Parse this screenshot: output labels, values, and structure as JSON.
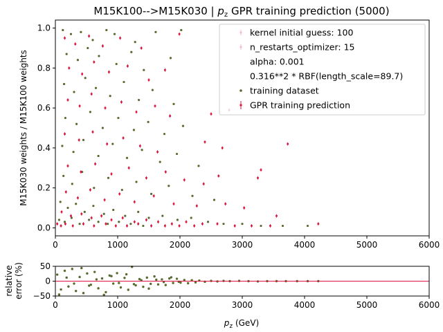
{
  "chart_data": [
    {
      "type": "scatter",
      "title": "M15K100-->M15K030 | p_z GPR training prediction (5000)",
      "title_parts": {
        "pre": "M15K100-->M15K030 | ",
        "sym": "p",
        "sub": "z",
        "post": " GPR training prediction (5000)"
      },
      "ylabel": "M15K030 weights / M15K100 weights",
      "xlim": [
        0,
        6000
      ],
      "ylim": [
        -0.04,
        1.04
      ],
      "xticks": [
        "0",
        "1000",
        "2000",
        "3000",
        "4000",
        "5000",
        "6000"
      ],
      "yticks": [
        "0.0",
        "0.2",
        "0.4",
        "0.6",
        "0.8",
        "1.0"
      ],
      "grid": false,
      "legend_position": "top-right",
      "legend": [
        {
          "label": "kernel initial guess: 100",
          "marker": "errorbar-pink"
        },
        {
          "label": "n_restarts_optimizer: 15",
          "marker": "errorbar-pink"
        },
        {
          "label": "alpha: 0.001",
          "marker": "none"
        },
        {
          "label": "0.316**2 * RBF(length_scale=89.7)",
          "marker": "none"
        },
        {
          "label": "training dataset",
          "marker": "dot-green"
        },
        {
          "label": "GPR training prediction",
          "marker": "errorbar-red"
        }
      ],
      "series": [
        {
          "name": "training dataset",
          "color": "#556b2f",
          "points": [
            [
              120,
              0.99
            ],
            [
              250,
              0.97
            ],
            [
              410,
              0.98
            ],
            [
              600,
              0.94
            ],
            [
              820,
              0.99
            ],
            [
              950,
              0.97
            ],
            [
              1280,
              0.93
            ],
            [
              1610,
              0.98
            ],
            [
              2020,
              0.99
            ],
            [
              180,
              0.87
            ],
            [
              360,
              0.84
            ],
            [
              520,
              0.9
            ],
            [
              700,
              0.86
            ],
            [
              980,
              0.82
            ],
            [
              1220,
              0.88
            ],
            [
              1420,
              0.79
            ],
            [
              1850,
              0.85
            ],
            [
              140,
              0.72
            ],
            [
              300,
              0.68
            ],
            [
              480,
              0.75
            ],
            [
              650,
              0.7
            ],
            [
              880,
              0.66
            ],
            [
              1100,
              0.73
            ],
            [
              1340,
              0.64
            ],
            [
              1560,
              0.69
            ],
            [
              1900,
              0.62
            ],
            [
              160,
              0.55
            ],
            [
              340,
              0.52
            ],
            [
              560,
              0.58
            ],
            [
              760,
              0.5
            ],
            [
              1010,
              0.55
            ],
            [
              1260,
              0.49
            ],
            [
              1490,
              0.53
            ],
            [
              1750,
              0.47
            ],
            [
              2050,
              0.51
            ],
            [
              110,
              0.41
            ],
            [
              290,
              0.38
            ],
            [
              450,
              0.44
            ],
            [
              690,
              0.36
            ],
            [
              920,
              0.42
            ],
            [
              1150,
              0.35
            ],
            [
              1390,
              0.39
            ],
            [
              1680,
              0.33
            ],
            [
              1950,
              0.37
            ],
            [
              2300,
              0.31
            ],
            [
              130,
              0.26
            ],
            [
              270,
              0.22
            ],
            [
              430,
              0.28
            ],
            [
              620,
              0.2
            ],
            [
              850,
              0.25
            ],
            [
              1070,
              0.19
            ],
            [
              1300,
              0.23
            ],
            [
              1540,
              0.17
            ],
            [
              1820,
              0.21
            ],
            [
              2200,
              0.16
            ],
            [
              2550,
              0.14
            ],
            [
              80,
              0.13
            ],
            [
              200,
              0.1
            ],
            [
              330,
              0.12
            ],
            [
              470,
              0.08
            ],
            [
              610,
              0.11
            ],
            [
              780,
              0.07
            ],
            [
              930,
              0.09
            ],
            [
              1120,
              0.06
            ],
            [
              1330,
              0.08
            ],
            [
              1500,
              0.05
            ],
            [
              1720,
              0.06
            ],
            [
              1960,
              0.04
            ],
            [
              2180,
              0.05
            ],
            [
              2450,
              0.03
            ],
            [
              2700,
              0.02
            ],
            [
              3000,
              0.02
            ],
            [
              3300,
              0.01
            ],
            [
              3650,
              0.01
            ],
            [
              4050,
              0.01
            ],
            [
              60,
              0.04
            ],
            [
              150,
              0.03
            ],
            [
              260,
              0.05
            ],
            [
              390,
              0.02
            ],
            [
              540,
              0.04
            ],
            [
              690,
              0.03
            ],
            [
              840,
              0.02
            ],
            [
              1020,
              0.03
            ],
            [
              1210,
              0.02
            ],
            [
              1410,
              0.01
            ]
          ]
        },
        {
          "name": "GPR training prediction",
          "color": "#dc143c",
          "points": [
            [
              150,
              0.95
            ],
            [
              320,
              0.92
            ],
            [
              540,
              0.96
            ],
            [
              760,
              0.91
            ],
            [
              1040,
              0.95
            ],
            [
              1380,
              0.9
            ],
            [
              1990,
              0.97
            ],
            [
              220,
              0.8
            ],
            [
              430,
              0.77
            ],
            [
              620,
              0.83
            ],
            [
              860,
              0.78
            ],
            [
              1160,
              0.81
            ],
            [
              1500,
              0.74
            ],
            [
              1760,
              0.79
            ],
            [
              200,
              0.64
            ],
            [
              390,
              0.61
            ],
            [
              580,
              0.67
            ],
            [
              800,
              0.6
            ],
            [
              1060,
              0.63
            ],
            [
              1300,
              0.58
            ],
            [
              1600,
              0.61
            ],
            [
              1840,
              0.56
            ],
            [
              2500,
              0.57
            ],
            [
              2790,
              0.59
            ],
            [
              3730,
              0.42
            ],
            [
              150,
              0.47
            ],
            [
              380,
              0.44
            ],
            [
              600,
              0.48
            ],
            [
              830,
              0.42
            ],
            [
              1090,
              0.45
            ],
            [
              1360,
              0.41
            ],
            [
              1640,
              0.38
            ],
            [
              2400,
              0.43
            ],
            [
              2680,
              0.4
            ],
            [
              200,
              0.31
            ],
            [
              410,
              0.28
            ],
            [
              640,
              0.32
            ],
            [
              900,
              0.27
            ],
            [
              1180,
              0.3
            ],
            [
              1460,
              0.25
            ],
            [
              1770,
              0.28
            ],
            [
              2070,
              0.24
            ],
            [
              2380,
              0.22
            ],
            [
              2620,
              0.26
            ],
            [
              3300,
              0.29
            ],
            [
              3250,
              0.25
            ],
            [
              170,
              0.18
            ],
            [
              360,
              0.15
            ],
            [
              560,
              0.19
            ],
            [
              790,
              0.14
            ],
            [
              1030,
              0.17
            ],
            [
              1270,
              0.13
            ],
            [
              1580,
              0.16
            ],
            [
              1900,
              0.12
            ],
            [
              2270,
              0.11
            ],
            [
              2730,
              0.12
            ],
            [
              3030,
              0.1
            ],
            [
              3550,
              0.06
            ],
            [
              100,
              0.08
            ],
            [
              250,
              0.06
            ],
            [
              420,
              0.07
            ],
            [
              580,
              0.05
            ],
            [
              740,
              0.06
            ],
            [
              900,
              0.04
            ],
            [
              1080,
              0.05
            ],
            [
              1270,
              0.03
            ],
            [
              1460,
              0.04
            ],
            [
              1650,
              0.03
            ],
            [
              1870,
              0.02
            ],
            [
              2100,
              0.03
            ],
            [
              2360,
              0.02
            ],
            [
              2600,
              0.02
            ],
            [
              2880,
              0.01
            ],
            [
              3150,
              0.01
            ],
            [
              3450,
              0.01
            ],
            [
              4220,
              0.02
            ],
            [
              30,
              0.02
            ],
            [
              90,
              0.01
            ],
            [
              160,
              0.02
            ],
            [
              280,
              0.01
            ],
            [
              450,
              0.02
            ],
            [
              620,
              0.01
            ],
            [
              810,
              0.02
            ],
            [
              970,
              0.01
            ],
            [
              1150,
              0.01
            ],
            [
              1330,
              0.02
            ],
            [
              1540,
              0.01
            ],
            [
              1760,
              0.01
            ],
            [
              1990,
              0.01
            ],
            [
              2230,
              0.01
            ]
          ]
        }
      ]
    },
    {
      "type": "scatter",
      "xlabel_parts": {
        "sym": "p",
        "sub": "z",
        "post": " (GeV)"
      },
      "ylabel": [
        "relative",
        "error (%)"
      ],
      "xlim": [
        0,
        6000
      ],
      "ylim": [
        -50,
        50
      ],
      "xticks": [
        "0",
        "1000",
        "2000",
        "3000",
        "4000",
        "5000",
        "6000"
      ],
      "yticks": [
        "−50",
        "0",
        "50"
      ],
      "reference_line": {
        "y": 0,
        "color": "#dc143c"
      },
      "series": [
        {
          "name": "relative error",
          "color": "#556b2f",
          "points": [
            [
              30,
              22
            ],
            [
              90,
              -28
            ],
            [
              150,
              35
            ],
            [
              210,
              -18
            ],
            [
              270,
              41
            ],
            [
              330,
              -33
            ],
            [
              390,
              14
            ],
            [
              450,
              -40
            ],
            [
              510,
              26
            ],
            [
              570,
              -12
            ],
            [
              630,
              31
            ],
            [
              690,
              -24
            ],
            [
              750,
              9
            ],
            [
              810,
              -37
            ],
            [
              870,
              19
            ],
            [
              930,
              -8
            ],
            [
              990,
              27
            ],
            [
              1050,
              -21
            ],
            [
              1110,
              11
            ],
            [
              1170,
              -29
            ],
            [
              1230,
              48
            ],
            [
              1290,
              -14
            ],
            [
              1350,
              7
            ],
            [
              1410,
              -19
            ],
            [
              1470,
              12
            ],
            [
              1530,
              -9
            ],
            [
              1590,
              16
            ],
            [
              1650,
              -11
            ],
            [
              1710,
              6
            ],
            [
              1770,
              -13
            ],
            [
              1830,
              9
            ],
            [
              1890,
              -6
            ],
            [
              1950,
              8
            ],
            [
              2010,
              -5
            ],
            [
              2070,
              4
            ],
            [
              2130,
              -7
            ],
            [
              2190,
              3
            ],
            [
              2250,
              -4
            ],
            [
              2310,
              2
            ],
            [
              2400,
              -2
            ],
            [
              2500,
              1
            ],
            [
              2600,
              -1
            ],
            [
              2700,
              1
            ],
            [
              2800,
              0
            ],
            [
              2950,
              1
            ],
            [
              3100,
              0
            ],
            [
              3250,
              -1
            ],
            [
              3400,
              0
            ],
            [
              3550,
              0
            ],
            [
              3700,
              0
            ],
            [
              3880,
              0
            ],
            [
              4050,
              0
            ],
            [
              4220,
              0
            ],
            [
              60,
              -45
            ],
            [
              180,
              12
            ],
            [
              300,
              -8
            ],
            [
              420,
              44
            ],
            [
              540,
              -15
            ],
            [
              660,
              6
            ],
            [
              780,
              -46
            ],
            [
              900,
              17
            ],
            [
              1020,
              -6
            ],
            [
              1140,
              23
            ],
            [
              1260,
              -10
            ],
            [
              1380,
              3
            ],
            [
              1500,
              -25
            ],
            [
              1620,
              5
            ],
            [
              1740,
              -3
            ],
            [
              1860,
              13
            ],
            [
              1980,
              -2
            ]
          ]
        }
      ]
    }
  ]
}
